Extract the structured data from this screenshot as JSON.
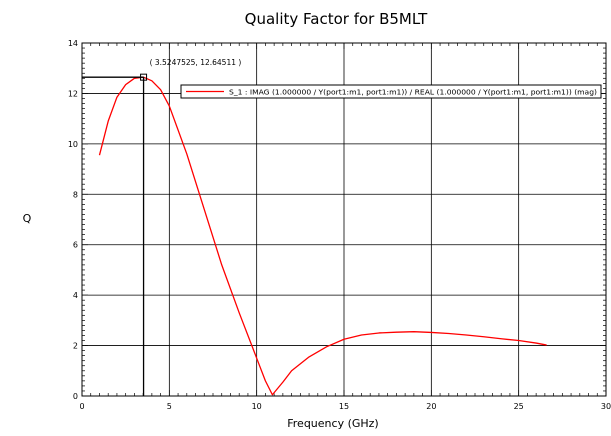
{
  "chart_data": {
    "type": "line",
    "title": "Quality Factor for B5MLT",
    "xlabel": "Frequency (GHz)",
    "ylabel": "Q",
    "xlim": [
      0,
      30
    ],
    "ylim": [
      0,
      14
    ],
    "x_ticks": [
      0,
      5,
      10,
      15,
      20,
      25,
      30
    ],
    "y_ticks": [
      0,
      2,
      4,
      6,
      8,
      10,
      12,
      14
    ],
    "grid": true,
    "legend_position": "top-right",
    "series": [
      {
        "name": "S_1 : IMAG (1.000000 / Y(port1:m1, port1:m1)) / REAL (1.000000 / Y(port1:m1, port1:m1)) (mag)",
        "color": "#ff0000",
        "x": [
          1.0,
          1.5,
          2.0,
          2.5,
          3.0,
          3.5247525,
          4.0,
          4.5,
          5.0,
          6.0,
          7.0,
          8.0,
          9.0,
          10.0,
          10.5,
          10.9,
          11.5,
          12.0,
          13.0,
          14.0,
          15.0,
          16.0,
          17.0,
          18.0,
          19.0,
          20.0,
          21.0,
          22.0,
          23.0,
          24.0,
          25.0,
          26.0,
          26.6
        ],
        "y": [
          9.55,
          10.9,
          11.85,
          12.35,
          12.6,
          12.64511,
          12.5,
          12.15,
          11.5,
          9.6,
          7.4,
          5.2,
          3.3,
          1.5,
          0.6,
          0.05,
          0.55,
          1.0,
          1.55,
          1.95,
          2.25,
          2.42,
          2.5,
          2.53,
          2.55,
          2.52,
          2.48,
          2.42,
          2.35,
          2.27,
          2.2,
          2.1,
          2.02
        ]
      }
    ],
    "marker": {
      "label": "( 3.5247525, 12.64511 )",
      "x": 3.5247525,
      "y": 12.64511
    }
  }
}
